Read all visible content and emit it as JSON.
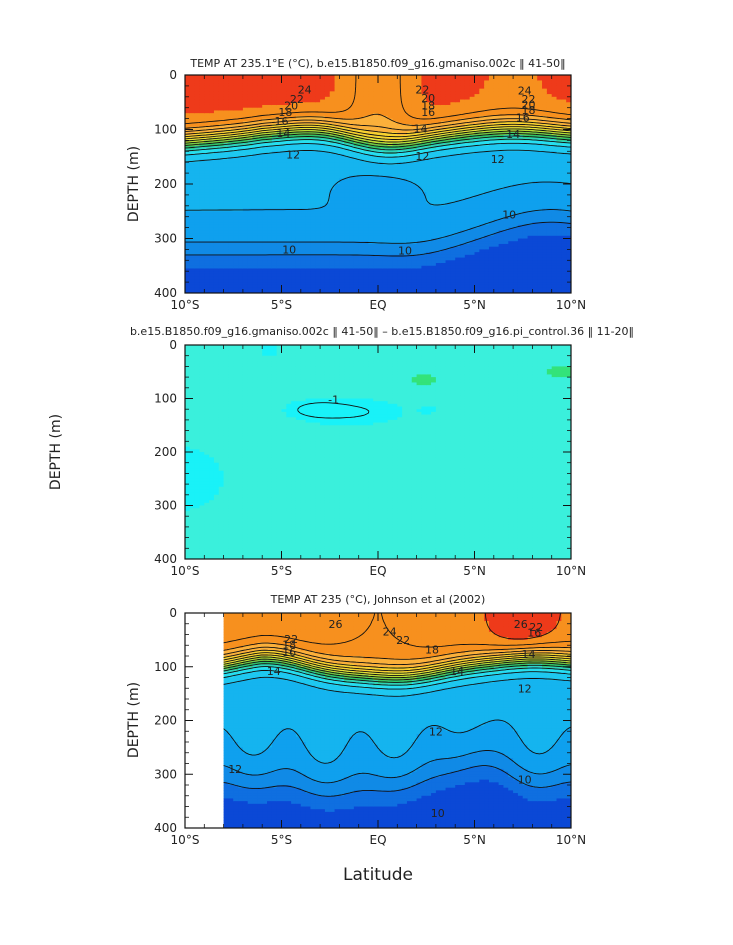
{
  "figure": {
    "xlabel": "Latitude",
    "colors": {
      "levels": [
        {
          "min": 26,
          "color": "#ee3a1a"
        },
        {
          "min": 24,
          "color": "#f7901e"
        },
        {
          "min": 22,
          "color": "#fbb03b"
        },
        {
          "min": 20,
          "color": "#f8d230"
        },
        {
          "min": 19,
          "color": "#e8e43a"
        },
        {
          "min": 18,
          "color": "#b8dd35"
        },
        {
          "min": 17,
          "color": "#70c846"
        },
        {
          "min": 16,
          "color": "#2fc46a"
        },
        {
          "min": 15,
          "color": "#2ed2b8"
        },
        {
          "min": 14,
          "color": "#27dff0"
        },
        {
          "min": 13,
          "color": "#1ec8f0"
        },
        {
          "min": 12,
          "color": "#15b4ef"
        },
        {
          "min": 11,
          "color": "#0fa0ee"
        },
        {
          "min": 10,
          "color": "#108ae6"
        },
        {
          "min": 9,
          "color": "#0f6fe0"
        },
        {
          "min": -100,
          "color": "#0b48d6"
        }
      ],
      "diff_base": "#3af0dc",
      "diff_light": "#19f2f8",
      "diff_green": "#33e37a"
    }
  },
  "chart_data": [
    {
      "type": "contour",
      "title": "TEMP AT 235.1°E (°C), b.e15.B1850.f09_g16.gmaniso.002c ‖ 41-50‖",
      "ylabel": "DEPTH (m)",
      "xlim": [
        -10,
        10
      ],
      "ylim": [
        400,
        0
      ],
      "x_ticks": [
        "10°S",
        "5°S",
        "EQ",
        "5°N",
        "10°N"
      ],
      "y_ticks": [
        "0",
        "100",
        "200",
        "300",
        "400"
      ],
      "contour_labels": [
        "24",
        "22",
        "20",
        "18",
        "16",
        "14",
        "12",
        "10",
        "22",
        "20",
        "18",
        "16",
        "14",
        "12",
        "10",
        "24",
        "22",
        "20",
        "18",
        "16",
        "14",
        "12",
        "10"
      ],
      "note": "Warm mixed layer (>24°C) over a thermocline at ~80-130 m; 10°C isotherm near 320-340 m south of ~4°N shoaling to ~260 m at 10°N"
    },
    {
      "type": "contour",
      "title": "b.e15.B1850.f09_g16.gmaniso.002c ‖ 41-50‖ – b.e15.B1850.f09_g16.pi_control.36 ‖ 11-20‖",
      "ylabel": "DEPTH (m)",
      "xlim": [
        -10,
        10
      ],
      "ylim": [
        400,
        0
      ],
      "x_ticks": [
        "10°S",
        "5°S",
        "EQ",
        "5°N",
        "10°N"
      ],
      "y_ticks": [
        "0",
        "100",
        "200",
        "300",
        "400"
      ],
      "contour_labels": [
        "-1"
      ],
      "note": "Mostly near-zero difference; weak cooling lobes near 100-150 m and off 10°S at 200-330 m"
    },
    {
      "type": "contour",
      "title": "TEMP AT 235 (°C), Johnson et al (2002)",
      "ylabel": "DEPTH (m)",
      "xlim": [
        -10,
        10
      ],
      "ylim": [
        400,
        0
      ],
      "data_xlim": [
        -8,
        10
      ],
      "x_ticks": [
        "10°S",
        "5°S",
        "EQ",
        "5°N",
        "10°N"
      ],
      "y_ticks": [
        "0",
        "100",
        "200",
        "300",
        "400"
      ],
      "contour_labels": [
        "26",
        "22",
        "18",
        "16",
        "14",
        "24",
        "22",
        "18",
        "14",
        "26",
        "22",
        "16",
        "14",
        "12",
        "12",
        "12",
        "10",
        "10"
      ],
      "note": "Observations begin at ~8°S; >26°C surface water near 6-9°N"
    }
  ]
}
